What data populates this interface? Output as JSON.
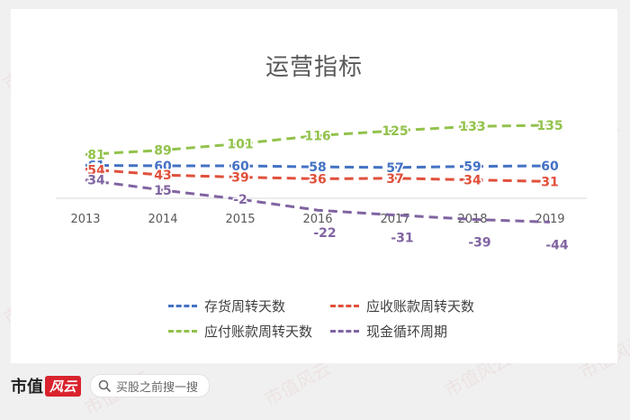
{
  "chart_data": {
    "type": "line",
    "title": "运营指标",
    "categories": [
      "2013",
      "2014",
      "2015",
      "2016",
      "2017",
      "2018",
      "2019"
    ],
    "series": [
      {
        "name": "存货周转天数",
        "color": "#4472c4",
        "values": [
          61,
          60,
          60,
          58,
          57,
          59,
          60
        ]
      },
      {
        "name": "应收账款周转天数",
        "color": "#e0503c",
        "values": [
          54,
          43,
          39,
          36,
          37,
          34,
          31
        ]
      },
      {
        "name": "应付账款周转天数",
        "color": "#92c24b",
        "values": [
          81,
          89,
          101,
          116,
          125,
          133,
          135
        ]
      },
      {
        "name": "现金循环周期",
        "color": "#8064a2",
        "values": [
          34,
          15,
          -2,
          -22,
          -31,
          -39,
          -44
        ]
      }
    ],
    "legend_position": "bottom",
    "grid": false,
    "line_style": "dashed",
    "ylim": [
      -50,
      140
    ]
  },
  "watermark": "市值风云",
  "footer": {
    "brand": "市值",
    "brand_badge": "风云",
    "search_placeholder": "买股之前搜一搜",
    "search_icon": "search-icon"
  }
}
